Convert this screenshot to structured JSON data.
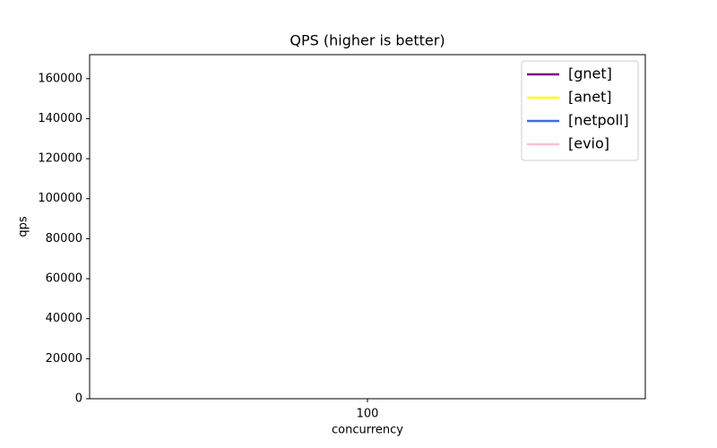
{
  "chart_data": {
    "type": "line",
    "title": "QPS (higher is better)",
    "xlabel": "concurrency",
    "ylabel": "qps",
    "categories": [
      "100"
    ],
    "series": [
      {
        "name": "[gnet]",
        "color": "#800080",
        "values": [
          null
        ]
      },
      {
        "name": "[anet]",
        "color": "#ffff00",
        "values": [
          null
        ]
      },
      {
        "name": "[netpoll]",
        "color": "#4169e1",
        "values": [
          null
        ]
      },
      {
        "name": "[evio]",
        "color": "#ffc0cb",
        "values": [
          null
        ]
      }
    ],
    "ylim": [
      0,
      172000
    ],
    "yticks": [
      0,
      20000,
      40000,
      60000,
      80000,
      100000,
      120000,
      140000,
      160000
    ],
    "legend": "upper right",
    "grid": false
  }
}
